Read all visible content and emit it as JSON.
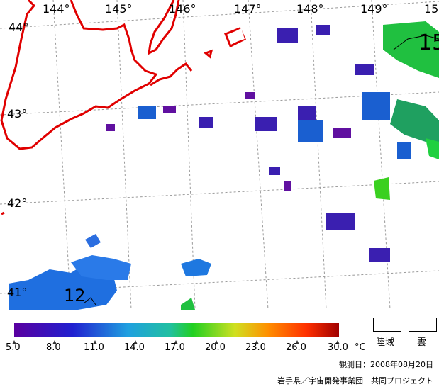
{
  "map": {
    "lon_labels": [
      "144°",
      "145°",
      "146°",
      "147°",
      "148°",
      "149°",
      "15"
    ],
    "lat_labels": [
      "44°",
      "43°",
      "42°",
      "41°"
    ],
    "contour_labels": [
      "15",
      "12"
    ],
    "colors": {
      "coast": "#e00000",
      "grid": "#9a9a9a",
      "sst_low": "#5a00a0",
      "sst_mid": "#1f6fe0",
      "sst_warm": "#20c040"
    }
  },
  "legend": {
    "ticks": [
      "5.0",
      "8.0",
      "11.0",
      "14.0",
      "17.0",
      "20.0",
      "23.0",
      "26.0",
      "30.0"
    ],
    "unit": "°C",
    "keys": {
      "land": "陸域",
      "cloud": "雲"
    }
  },
  "footer": {
    "date": "観測日：2008年08月20日",
    "credit": "岩手県／宇宙開発事業団　共同プロジェクト"
  }
}
